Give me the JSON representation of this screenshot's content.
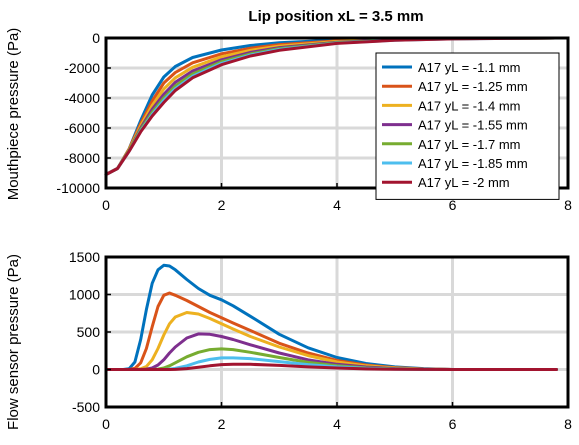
{
  "chart_data": [
    {
      "type": "line",
      "title": "Lip position xL = 3.5 mm",
      "xlabel": "",
      "ylabel": "Mouthpiece pressure (Pa)",
      "xlim": [
        0,
        8
      ],
      "ylim": [
        -10000,
        0
      ],
      "xticks": [
        "0",
        "2",
        "4",
        "6",
        "8"
      ],
      "yticks": [
        "0",
        "-2000",
        "-4000",
        "-6000",
        "-8000",
        "-10000"
      ],
      "grid": true,
      "legend_position": "top-right",
      "x": [
        0,
        0.2,
        0.4,
        0.6,
        0.8,
        1.0,
        1.2,
        1.5,
        2.0,
        2.5,
        3.0,
        4.0,
        5.0,
        6.0,
        7.0,
        7.8
      ],
      "series": [
        {
          "name": "A17 yL = -1.1 mm",
          "color": "#0072BD",
          "values": [
            -9100,
            -8700,
            -7400,
            -5500,
            -3800,
            -2600,
            -1900,
            -1300,
            -800,
            -500,
            -320,
            -130,
            -50,
            -20,
            -8,
            0
          ]
        },
        {
          "name": "A17 yL = -1.25 mm",
          "color": "#D95319",
          "values": [
            -9100,
            -8700,
            -7400,
            -5700,
            -4200,
            -3000,
            -2300,
            -1650,
            -1050,
            -680,
            -440,
            -190,
            -75,
            -30,
            -12,
            0
          ]
        },
        {
          "name": "A17 yL = -1.4 mm",
          "color": "#EDB120",
          "values": [
            -9100,
            -8700,
            -7450,
            -5850,
            -4500,
            -3400,
            -2650,
            -1950,
            -1250,
            -820,
            -540,
            -230,
            -95,
            -38,
            -15,
            0
          ]
        },
        {
          "name": "A17 yL = -1.55 mm",
          "color": "#7E2F8E",
          "values": [
            -9100,
            -8700,
            -7500,
            -6000,
            -4750,
            -3750,
            -2950,
            -2200,
            -1450,
            -960,
            -640,
            -280,
            -115,
            -46,
            -18,
            0
          ]
        },
        {
          "name": "A17 yL = -1.7 mm",
          "color": "#77AC30",
          "values": [
            -9100,
            -8700,
            -7500,
            -6100,
            -4950,
            -4000,
            -3200,
            -2400,
            -1580,
            -1060,
            -710,
            -310,
            -130,
            -52,
            -20,
            0
          ]
        },
        {
          "name": "A17 yL = -1.85 mm",
          "color": "#4DBEEE",
          "values": [
            -9100,
            -8700,
            -7550,
            -6200,
            -5100,
            -4150,
            -3380,
            -2550,
            -1690,
            -1140,
            -770,
            -340,
            -145,
            -58,
            -22,
            0
          ]
        },
        {
          "name": "A17 yL = -2 mm",
          "color": "#A2142F",
          "values": [
            -9100,
            -8700,
            -7550,
            -6250,
            -5200,
            -4300,
            -3500,
            -2650,
            -1780,
            -1200,
            -820,
            -360,
            -155,
            -62,
            -24,
            0
          ]
        }
      ]
    },
    {
      "type": "line",
      "title": "",
      "xlabel": "",
      "ylabel": "Flow sensor pressure (Pa)",
      "xlim": [
        0,
        8
      ],
      "ylim": [
        -500,
        1500
      ],
      "xticks": [
        "0",
        "2",
        "4",
        "6",
        "8"
      ],
      "yticks": [
        "1500",
        "1000",
        "500",
        "0",
        "-500"
      ],
      "grid": true,
      "x": [
        0,
        0.3,
        0.4,
        0.5,
        0.6,
        0.7,
        0.8,
        0.9,
        1.0,
        1.1,
        1.2,
        1.4,
        1.6,
        1.8,
        2.0,
        2.2,
        2.5,
        3.0,
        3.5,
        4.0,
        4.5,
        5.0,
        5.5,
        6.0,
        7.0,
        7.8
      ],
      "series": [
        {
          "name": "A17 yL = -1.1 mm",
          "color": "#0072BD",
          "values": [
            0,
            0,
            10,
            100,
            400,
            800,
            1150,
            1330,
            1390,
            1380,
            1330,
            1200,
            1080,
            990,
            930,
            850,
            710,
            470,
            290,
            160,
            80,
            35,
            12,
            0,
            0,
            0
          ]
        },
        {
          "name": "A17 yL = -1.25 mm",
          "color": "#D95319",
          "values": [
            0,
            0,
            0,
            15,
            90,
            280,
            570,
            840,
            990,
            1020,
            990,
            920,
            840,
            760,
            690,
            620,
            520,
            350,
            220,
            120,
            60,
            25,
            8,
            0,
            0,
            0
          ]
        },
        {
          "name": "A17 yL = -1.4 mm",
          "color": "#EDB120",
          "values": [
            0,
            0,
            0,
            0,
            10,
            40,
            130,
            280,
            460,
            610,
            700,
            760,
            740,
            680,
            610,
            540,
            440,
            300,
            185,
            100,
            50,
            20,
            6,
            0,
            0,
            0
          ]
        },
        {
          "name": "A17 yL = -1.55 mm",
          "color": "#7E2F8E",
          "values": [
            0,
            0,
            0,
            0,
            0,
            5,
            20,
            60,
            130,
            220,
            300,
            420,
            475,
            470,
            440,
            400,
            330,
            220,
            130,
            70,
            33,
            12,
            4,
            0,
            0,
            0
          ]
        },
        {
          "name": "A17 yL = -1.7 mm",
          "color": "#77AC30",
          "values": [
            0,
            0,
            0,
            0,
            0,
            0,
            0,
            5,
            20,
            50,
            90,
            170,
            230,
            265,
            275,
            265,
            230,
            160,
            95,
            50,
            22,
            8,
            2,
            0,
            0,
            0
          ]
        },
        {
          "name": "A17 yL = -1.85 mm",
          "color": "#4DBEEE",
          "values": [
            0,
            0,
            0,
            0,
            0,
            0,
            0,
            0,
            0,
            5,
            15,
            50,
            100,
            135,
            155,
            155,
            145,
            105,
            65,
            35,
            15,
            5,
            1,
            0,
            0,
            0
          ]
        },
        {
          "name": "A17 yL = -2 mm",
          "color": "#A2142F",
          "values": [
            0,
            0,
            0,
            0,
            0,
            0,
            0,
            0,
            0,
            0,
            2,
            12,
            30,
            50,
            65,
            70,
            70,
            55,
            35,
            20,
            8,
            3,
            1,
            0,
            0,
            0
          ]
        }
      ]
    }
  ]
}
